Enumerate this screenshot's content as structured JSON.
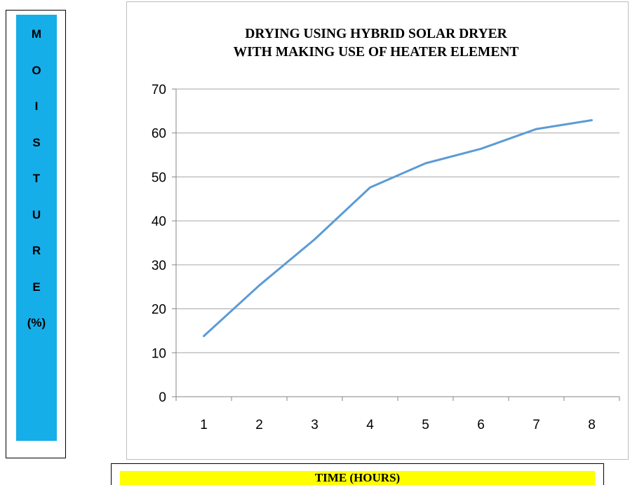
{
  "y_axis_label": {
    "letters": [
      "M",
      "O",
      "I",
      "S",
      "T",
      "U",
      "R",
      "E",
      "(%)"
    ],
    "fill_color": "#16aee8"
  },
  "x_axis_label": {
    "text": "TIME (HOURS)",
    "fill_color": "#ffff00"
  },
  "chart_data": {
    "type": "line",
    "title": [
      "DRYING USING HYBRID SOLAR DRYER",
      "WITH MAKING USE OF HEATER ELEMENT"
    ],
    "categories": [
      "1",
      "2",
      "3",
      "4",
      "5",
      "6",
      "7",
      "8"
    ],
    "series": [
      {
        "values": [
          13.8,
          25.3,
          35.8,
          47.6,
          53.1,
          56.4,
          60.9,
          62.9
        ],
        "color": "#5b9bd5"
      }
    ],
    "ylim": [
      0,
      70
    ],
    "yticks": [
      0,
      10,
      20,
      30,
      40,
      50,
      60,
      70
    ],
    "grid": true
  }
}
